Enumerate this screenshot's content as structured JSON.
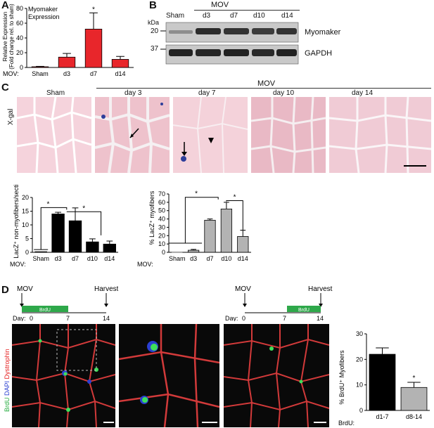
{
  "panels": {
    "A": {
      "label": "A",
      "title_line1": "Myomaker",
      "title_line2": "Expression",
      "ylabel_line1": "Relative Expression",
      "ylabel_line2": "(Fold change rel. to sham)",
      "xprefix": "MOV:",
      "star": "*"
    },
    "B": {
      "label": "B",
      "group_label": "MOV",
      "lanes": [
        "Sham",
        "d3",
        "d7",
        "d10",
        "d14"
      ],
      "kda_label": "kDa",
      "marker_20": "20",
      "marker_37": "37",
      "protein1": "Myomaker",
      "protein2": "GAPDH"
    },
    "C": {
      "label": "C",
      "group_label": "MOV",
      "columns": [
        "Sham",
        "day 3",
        "day 7",
        "day 10",
        "day 14"
      ],
      "row_label": "X-gal",
      "left_ylabel": "LacZ⁺ non-myofibers/section",
      "right_ylabel": "% LacZ⁺ myofibers",
      "xprefix": "MOV:"
    },
    "D": {
      "label": "D",
      "timeline1": {
        "mov": "MOV",
        "brdu": "BrdU",
        "harvest": "Harvest",
        "day": "Day:",
        "t0": "0",
        "t7": "7",
        "t14": "14"
      },
      "timeline2": {
        "mov": "MOV",
        "brdu": "BrdU",
        "harvest": "Harvest",
        "day": "Day:",
        "t0": "0",
        "t7": "7",
        "t14": "14"
      },
      "stain_brdu": "BrdU",
      "stain_dapi": "DAPI",
      "stain_dys": "Dystrophin",
      "ylabel": "% BrdU⁺ Myofibers",
      "xprefix": "BrdU:",
      "star": "*"
    }
  },
  "chart_data": [
    {
      "id": "A",
      "type": "bar",
      "categories": [
        "Sham",
        "d3",
        "d7",
        "d14"
      ],
      "values": [
        1,
        14,
        52,
        11
      ],
      "errors": [
        0.5,
        5,
        22,
        4
      ],
      "ylim": [
        0,
        80
      ],
      "yticks": [
        0,
        20,
        40,
        60,
        80
      ],
      "color": "#e8262b",
      "significance": [
        "d7"
      ]
    },
    {
      "id": "C-left",
      "type": "bar",
      "categories": [
        "Sham",
        "d3",
        "d7",
        "d10",
        "d14"
      ],
      "values": [
        0,
        14,
        11.5,
        3.8,
        3
      ],
      "errors": [
        0,
        0.6,
        4.7,
        1.1,
        1.1
      ],
      "ylim": [
        0,
        20
      ],
      "yticks": [
        0,
        5,
        10,
        15,
        20
      ],
      "color": "#000000",
      "significance": [
        "Sham vs d3/d7",
        "d3/d7 vs d10/d14"
      ]
    },
    {
      "id": "C-right",
      "type": "bar",
      "categories": [
        "Sham",
        "d3",
        "d7",
        "d10",
        "d14"
      ],
      "values": [
        0,
        2.5,
        38.5,
        52,
        19
      ],
      "errors": [
        0,
        1,
        1.5,
        8,
        7.5
      ],
      "ylim": [
        0,
        70
      ],
      "yticks": [
        0,
        10,
        20,
        30,
        40,
        50,
        60,
        70
      ],
      "color": "#b3b3b3",
      "significance": [
        "Sham/d3 vs d7/d10",
        "d10 vs d14"
      ]
    },
    {
      "id": "D",
      "type": "bar",
      "categories": [
        "d1-7",
        "d8-14"
      ],
      "values": [
        22,
        9
      ],
      "errors": [
        2.5,
        2
      ],
      "ylim": [
        0,
        30
      ],
      "yticks": [
        0,
        10,
        20,
        30
      ],
      "colors": [
        "#000000",
        "#b3b3b3"
      ],
      "significance": [
        "d8-14"
      ]
    }
  ]
}
